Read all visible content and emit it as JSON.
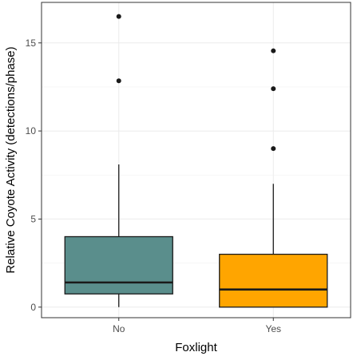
{
  "chart_data": {
    "type": "boxplot",
    "xlabel": "Foxlight",
    "ylabel": "Relative Coyote Activity (detections/phase)",
    "ylim": [
      -0.6,
      17.3
    ],
    "yticks": [
      0,
      5,
      10,
      15
    ],
    "ytick_labels": [
      "0",
      "5",
      "10",
      "15"
    ],
    "grid": true,
    "categories": [
      "No",
      "Yes"
    ],
    "boxes": [
      {
        "category": "No",
        "color": "#5a8e8c",
        "min": 0,
        "q1": 0.75,
        "median": 1.4,
        "q3": 4.0,
        "max": 8.1,
        "outliers": [
          12.85,
          16.5
        ]
      },
      {
        "category": "Yes",
        "color": "#ffa500",
        "min": 0,
        "q1": 0.0,
        "median": 1.0,
        "q3": 3.0,
        "max": 7.0,
        "outliers": [
          9.0,
          12.4,
          14.55
        ]
      }
    ]
  }
}
